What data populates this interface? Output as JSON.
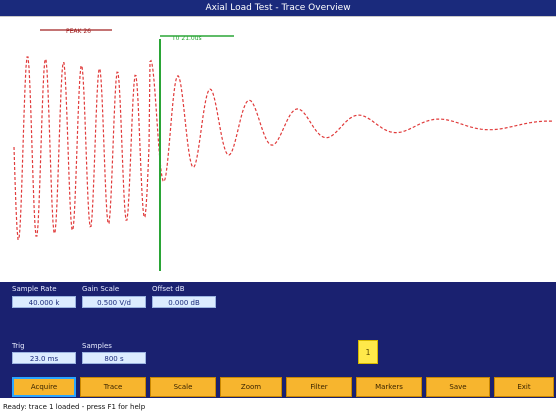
{
  "window": {
    "title": "Axial Load Test - Trace Overview"
  },
  "plot": {
    "annotation_red": "PEAK 26",
    "annotation_green": "T0 21.0us",
    "colors": {
      "trace": "#e03a3a",
      "marker": "#2aa536",
      "annotation": "#a02020"
    }
  },
  "fields": {
    "row1": [
      {
        "label": "Sample Rate",
        "value": "40.000 k"
      },
      {
        "label": "Gain Scale",
        "value": "0.500 V/d"
      },
      {
        "label": "Offset dB",
        "value": "0.000 dB"
      }
    ],
    "row2": [
      {
        "label": "Trig",
        "value": "23.0 ms"
      },
      {
        "label": "Samples",
        "value": "800 s"
      }
    ]
  },
  "indicator": {
    "text": "1"
  },
  "toolbar": {
    "buttons": [
      {
        "label": "Acquire"
      },
      {
        "label": "Trace"
      },
      {
        "label": "Scale"
      },
      {
        "label": "Zoom"
      },
      {
        "label": "Filter"
      },
      {
        "label": "Markers"
      },
      {
        "label": "Save"
      },
      {
        "label": "Exit"
      }
    ]
  },
  "status": {
    "text": "Ready: trace 1 loaded - press F1 for help"
  }
}
